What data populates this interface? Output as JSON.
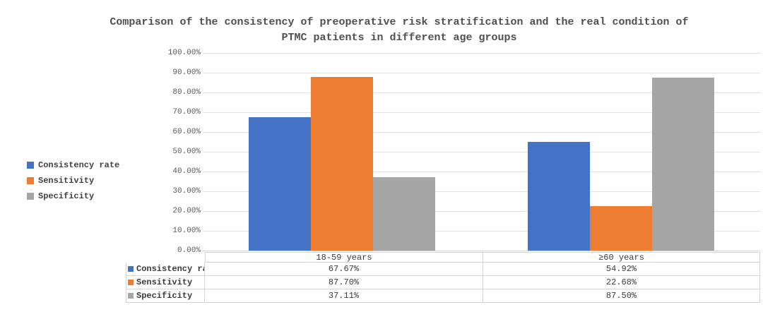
{
  "chart_data": {
    "type": "bar",
    "title": "Comparison of the consistency of preoperative risk stratification and the real condition of PTMC patients in different age groups",
    "categories": [
      "18-59 years",
      "≥60 years"
    ],
    "series": [
      {
        "name": "Consistency rate",
        "color": "#4472C4",
        "values": [
          67.67,
          54.92
        ],
        "labels": [
          "67.67%",
          "54.92%"
        ]
      },
      {
        "name": "Sensitivity",
        "color": "#ED7D31",
        "values": [
          87.7,
          22.68
        ],
        "labels": [
          "87.70%",
          "22.68%"
        ]
      },
      {
        "name": "Specificity",
        "color": "#A5A5A5",
        "values": [
          37.11,
          87.5
        ],
        "labels": [
          "37.11%",
          "87.50%"
        ]
      }
    ],
    "ylabel": "",
    "xlabel": "",
    "ylim": [
      0,
      100
    ],
    "y_ticks": [
      "0.00%",
      "10.00%",
      "20.00%",
      "30.00%",
      "40.00%",
      "50.00%",
      "60.00%",
      "70.00%",
      "80.00%",
      "90.00%",
      "100.00%"
    ],
    "grid": true,
    "legend_position": "left",
    "data_table_shown": true
  },
  "colors": {
    "title_text": "#4f4f4f",
    "axis_text": "#595959",
    "table_text": "#3a3a3a",
    "gridline": "#e4e4e4",
    "axis_line": "#d2d2d2",
    "table_border": "#d4d4d4",
    "background": "#ffffff"
  }
}
